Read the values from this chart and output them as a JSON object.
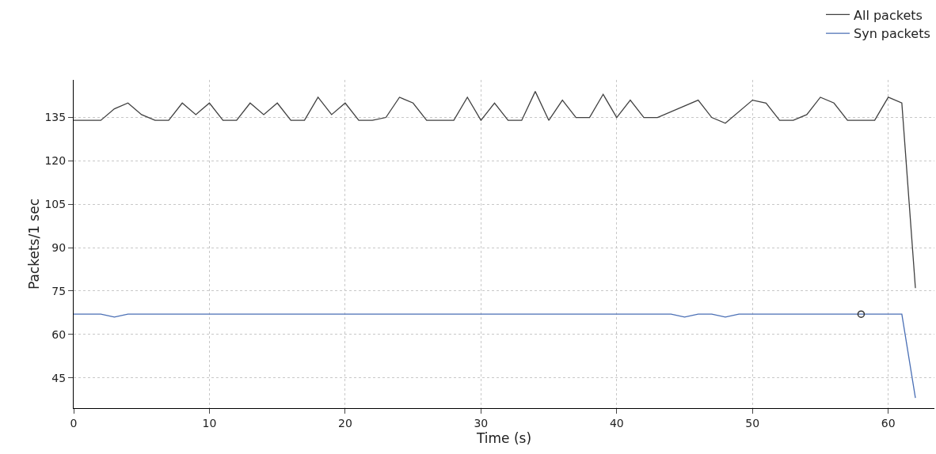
{
  "chart_data": {
    "type": "line",
    "xlabel": "Time (s)",
    "ylabel": "Packets/1 sec",
    "xlim": [
      0,
      63.4
    ],
    "xticks": [
      0,
      10,
      20,
      30,
      40,
      50,
      60
    ],
    "ylim": [
      34.5,
      148
    ],
    "yticks": [
      45,
      60,
      75,
      90,
      105,
      120,
      135
    ],
    "grid": true,
    "legend": "top right",
    "line_style": "solid",
    "marker": "none",
    "series": [
      {
        "name": "All packets",
        "color": "#404040",
        "x": [
          0,
          1,
          2,
          3,
          4,
          5,
          6,
          7,
          8,
          9,
          10,
          11,
          12,
          13,
          14,
          15,
          16,
          17,
          18,
          19,
          20,
          21,
          22,
          23,
          24,
          25,
          26,
          27,
          28,
          29,
          30,
          31,
          32,
          33,
          34,
          35,
          36,
          37,
          38,
          39,
          40,
          41,
          42,
          43,
          46,
          47,
          48,
          50,
          51,
          52,
          53,
          54,
          55,
          56,
          57,
          58,
          59,
          60,
          61,
          62
        ],
        "values": [
          134,
          134,
          134,
          138,
          140,
          136,
          134,
          134,
          140,
          136,
          140,
          134,
          134,
          140,
          136,
          140,
          134,
          134,
          142,
          136,
          140,
          134,
          134,
          135,
          142,
          140,
          134,
          134,
          134,
          142,
          134,
          140,
          134,
          134,
          144,
          134,
          141,
          135,
          135,
          143,
          135,
          141,
          135,
          135,
          141,
          135,
          133,
          141,
          140,
          134,
          134,
          136,
          142,
          140,
          134,
          134,
          134,
          142,
          140,
          76
        ]
      },
      {
        "name": "Syn packets",
        "color": "#4a6fb5",
        "x": [
          0,
          1,
          2,
          3,
          4,
          5,
          6,
          7,
          8,
          9,
          10,
          11,
          12,
          13,
          14,
          15,
          16,
          17,
          18,
          19,
          20,
          21,
          22,
          23,
          24,
          25,
          26,
          27,
          28,
          29,
          30,
          31,
          32,
          33,
          34,
          35,
          36,
          37,
          38,
          39,
          40,
          41,
          42,
          43,
          44,
          45,
          46,
          47,
          48,
          49,
          50,
          51,
          52,
          53,
          54,
          55,
          56,
          57,
          58,
          59,
          60,
          61,
          62
        ],
        "values": [
          67,
          67,
          67,
          66,
          67,
          67,
          67,
          67,
          67,
          67,
          67,
          67,
          67,
          67,
          67,
          67,
          67,
          67,
          67,
          67,
          67,
          67,
          67,
          67,
          67,
          67,
          67,
          67,
          67,
          67,
          67,
          67,
          67,
          67,
          67,
          67,
          67,
          67,
          67,
          67,
          67,
          67,
          67,
          67,
          67,
          66,
          67,
          67,
          66,
          67,
          67,
          67,
          67,
          67,
          67,
          67,
          67,
          67,
          67,
          67,
          67,
          67,
          38
        ]
      },
      {
        "type": "scatter",
        "color": "#333333",
        "marker": "circle",
        "x": [
          58
        ],
        "values": [
          67
        ]
      }
    ]
  }
}
